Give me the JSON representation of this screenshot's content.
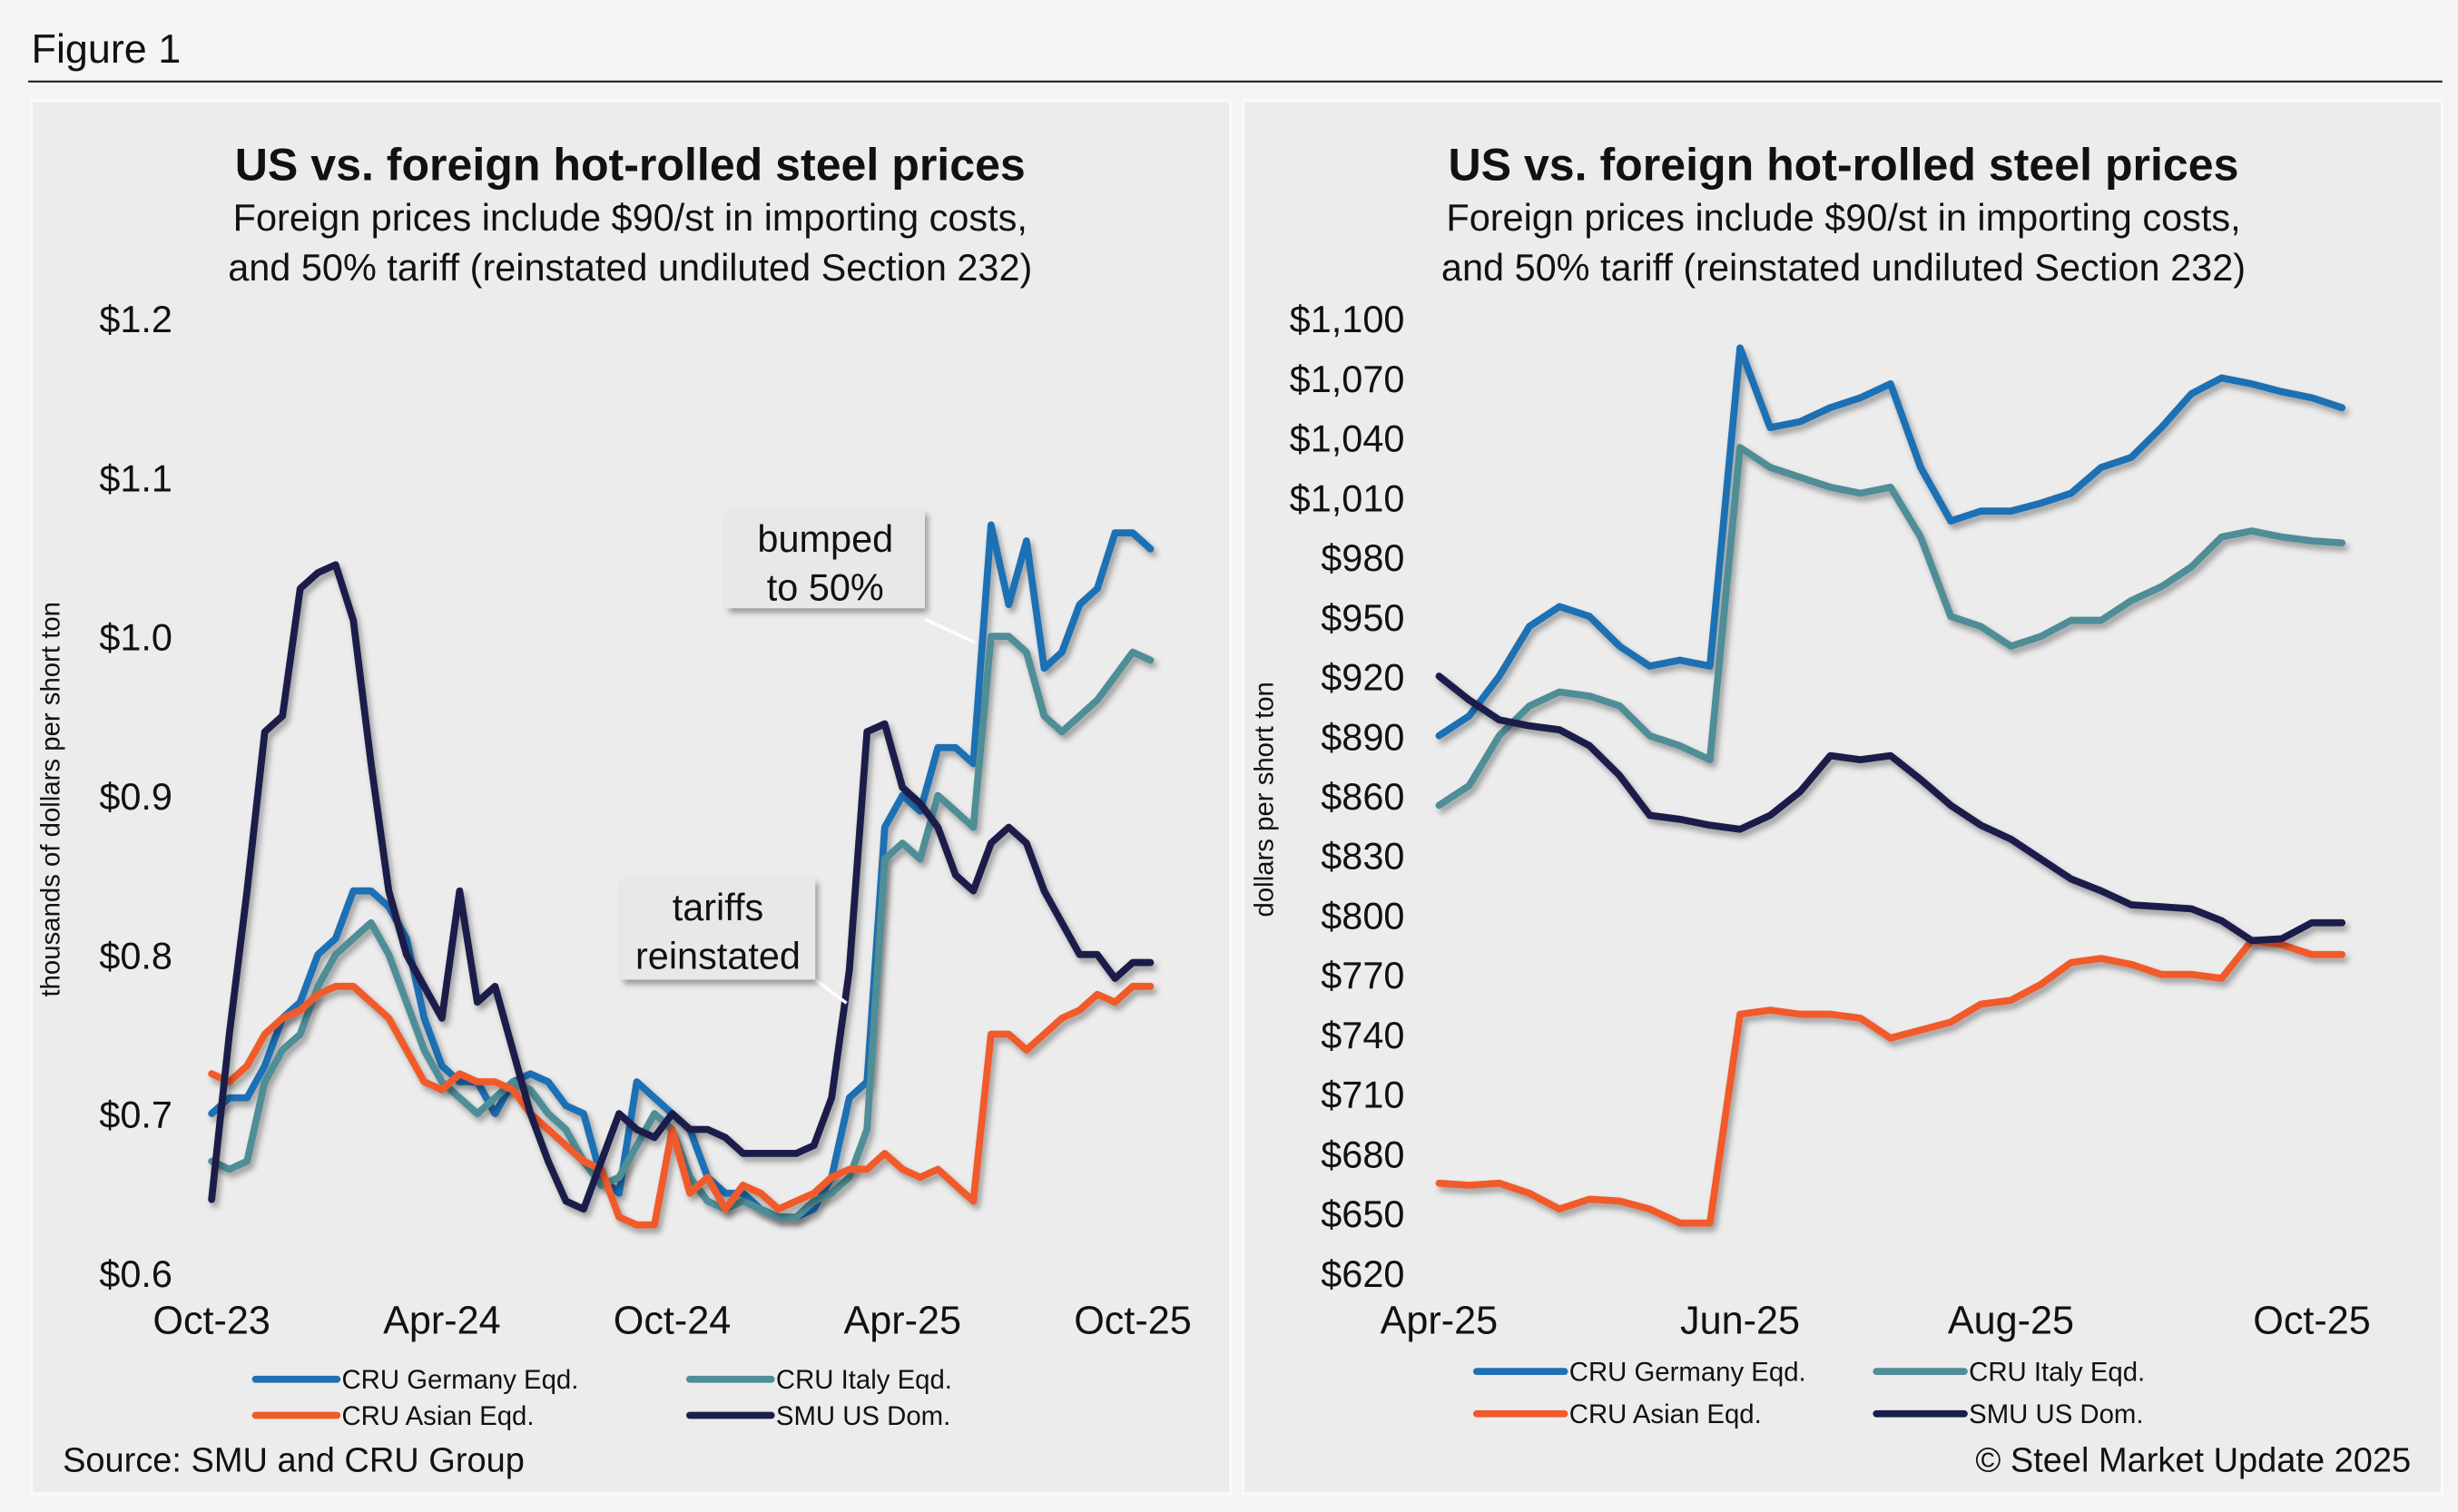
{
  "figure_title": "Figure 1",
  "source": "Source: SMU and CRU Group",
  "copyright": "© Steel Market Update 2025",
  "chart_data": [
    {
      "type": "line",
      "title": "US vs. foreign hot-rolled steel prices",
      "subtitle": [
        "Foreign prices include $90/st in importing costs,",
        "and 50% tariff (reinstated undiluted Section 232)"
      ],
      "y_label": "thousands of dollars per short ton",
      "categories": [
        "Oct-23",
        null,
        null,
        null,
        null,
        null,
        null,
        null,
        null,
        null,
        null,
        null,
        null,
        "Apr-24",
        null,
        null,
        null,
        null,
        null,
        null,
        null,
        null,
        null,
        null,
        null,
        null,
        "Oct-24",
        null,
        null,
        null,
        null,
        null,
        null,
        null,
        null,
        null,
        null,
        null,
        null,
        "Apr-25",
        null,
        null,
        null,
        null,
        null,
        null,
        null,
        null,
        null,
        null,
        null,
        null,
        "Oct-25",
        null
      ],
      "ylim": [
        0.6,
        1.2
      ],
      "yticks": [
        {
          "value": 0.6,
          "label": "$0.6"
        },
        {
          "value": 0.7,
          "label": "$0.7"
        },
        {
          "value": 0.8,
          "label": "$0.8"
        },
        {
          "value": 0.9,
          "label": "$0.9"
        },
        {
          "value": 1.0,
          "label": "$1.0"
        },
        {
          "value": 1.1,
          "label": "$1.1"
        },
        {
          "value": 1.2,
          "label": "$1.2"
        }
      ],
      "annotations": [
        [
          "bumped",
          "to 50%"
        ],
        [
          "tariffs",
          "reinstated"
        ]
      ],
      "series": [
        {
          "name": "CRU Germany Eqd.",
          "color": "#1f70b4",
          "values": [
            0.7,
            0.71,
            0.71,
            0.73,
            0.76,
            0.77,
            0.8,
            0.81,
            0.84,
            0.84,
            0.83,
            0.81,
            0.76,
            0.73,
            0.72,
            0.72,
            0.7,
            0.72,
            0.725,
            0.72,
            0.705,
            0.7,
            0.66,
            0.65,
            0.72,
            0.71,
            0.7,
            0.69,
            0.66,
            0.65,
            0.65,
            0.64,
            0.635,
            0.635,
            0.64,
            0.66,
            0.71,
            0.72,
            0.88,
            0.9,
            0.89,
            0.93,
            0.93,
            0.92,
            1.07,
            1.02,
            1.06,
            0.98,
            0.99,
            1.02,
            1.03,
            1.065,
            1.065,
            1.055
          ]
        },
        {
          "name": "CRU Italy Eqd.",
          "color": "#4f8d97",
          "values": [
            0.67,
            0.665,
            0.67,
            0.72,
            0.74,
            0.75,
            0.78,
            0.8,
            0.81,
            0.82,
            0.8,
            0.77,
            0.74,
            0.72,
            0.71,
            0.7,
            0.71,
            0.72,
            0.715,
            0.7,
            0.69,
            0.67,
            0.655,
            0.66,
            0.68,
            0.7,
            0.69,
            0.66,
            0.645,
            0.64,
            0.645,
            0.64,
            0.635,
            0.635,
            0.645,
            0.65,
            0.66,
            0.69,
            0.86,
            0.87,
            0.86,
            0.9,
            0.89,
            0.88,
            1.0,
            1.0,
            0.99,
            0.95,
            0.94,
            0.95,
            0.96,
            0.975,
            0.99,
            0.985
          ]
        },
        {
          "name": "CRU Asian Eqd.",
          "color": "#f15a29",
          "values": [
            0.725,
            0.72,
            0.73,
            0.75,
            0.76,
            0.765,
            0.775,
            0.78,
            0.78,
            0.77,
            0.76,
            0.74,
            0.72,
            0.715,
            0.725,
            0.72,
            0.72,
            0.715,
            0.7,
            0.69,
            0.68,
            0.67,
            0.665,
            0.635,
            0.63,
            0.63,
            0.69,
            0.65,
            0.66,
            0.64,
            0.655,
            0.65,
            0.64,
            0.645,
            0.65,
            0.66,
            0.665,
            0.665,
            0.675,
            0.665,
            0.66,
            0.665,
            0.655,
            0.645,
            0.75,
            0.75,
            0.74,
            0.75,
            0.76,
            0.765,
            0.775,
            0.77,
            0.78,
            0.78
          ]
        },
        {
          "name": "SMU US Dom.",
          "color": "#1b1f4b",
          "values": [
            0.646,
            0.75,
            0.84,
            0.94,
            0.95,
            1.03,
            1.04,
            1.045,
            1.01,
            0.92,
            0.84,
            0.8,
            0.78,
            0.76,
            0.84,
            0.77,
            0.78,
            0.74,
            0.7,
            0.67,
            0.645,
            0.64,
            0.67,
            0.7,
            0.69,
            0.685,
            0.7,
            0.69,
            0.69,
            0.685,
            0.675,
            0.675,
            0.675,
            0.675,
            0.68,
            0.71,
            0.79,
            0.94,
            0.945,
            0.905,
            0.895,
            0.88,
            0.85,
            0.84,
            0.87,
            0.88,
            0.87,
            0.84,
            0.82,
            0.8,
            0.8,
            0.785,
            0.795,
            0.795
          ]
        }
      ]
    },
    {
      "type": "line",
      "title": "US vs. foreign hot-rolled steel prices",
      "subtitle": [
        "Foreign prices include $90/st in importing costs,",
        "and 50% tariff (reinstated undiluted Section 232)"
      ],
      "y_label": "dollars per short ton",
      "categories": [
        "Apr-25",
        null,
        null,
        null,
        null,
        null,
        null,
        null,
        null,
        null,
        "Jun-25",
        null,
        null,
        null,
        null,
        null,
        null,
        null,
        null,
        "Aug-25",
        null,
        null,
        null,
        null,
        null,
        null,
        null,
        null,
        null,
        "Oct-25",
        null
      ],
      "ylim": [
        620,
        1100
      ],
      "yticks": [
        {
          "value": 620,
          "label": "$620"
        },
        {
          "value": 650,
          "label": "$650"
        },
        {
          "value": 680,
          "label": "$680"
        },
        {
          "value": 710,
          "label": "$710"
        },
        {
          "value": 740,
          "label": "$740"
        },
        {
          "value": 770,
          "label": "$770"
        },
        {
          "value": 800,
          "label": "$800"
        },
        {
          "value": 830,
          "label": "$830"
        },
        {
          "value": 860,
          "label": "$860"
        },
        {
          "value": 890,
          "label": "$890"
        },
        {
          "value": 920,
          "label": "$920"
        },
        {
          "value": 950,
          "label": "$950"
        },
        {
          "value": 980,
          "label": "$980"
        },
        {
          "value": 1010,
          "label": "$1,010"
        },
        {
          "value": 1040,
          "label": "$1,040"
        },
        {
          "value": 1070,
          "label": "$1,070"
        },
        {
          "value": 1100,
          "label": "$1,100"
        }
      ],
      "series": [
        {
          "name": "CRU Germany Eqd.",
          "color": "#1f70b4",
          "values": [
            890,
            900,
            920,
            945,
            955,
            950,
            935,
            925,
            928,
            925,
            1085,
            1045,
            1048,
            1055,
            1060,
            1067,
            1025,
            998,
            1003,
            1003,
            1007,
            1012,
            1025,
            1030,
            1045,
            1062,
            1070,
            1067,
            1063,
            1060,
            1055
          ]
        },
        {
          "name": "CRU Italy Eqd.",
          "color": "#4f8d97",
          "values": [
            855,
            865,
            890,
            905,
            912,
            910,
            905,
            890,
            885,
            878,
            1035,
            1025,
            1020,
            1015,
            1012,
            1015,
            990,
            950,
            945,
            935,
            940,
            948,
            948,
            958,
            965,
            975,
            990,
            993,
            990,
            988,
            987
          ]
        },
        {
          "name": "CRU Asian Eqd.",
          "color": "#f15a29",
          "values": [
            665,
            664,
            665,
            660,
            652,
            657,
            656,
            652,
            645,
            645,
            750,
            752,
            750,
            750,
            748,
            738,
            742,
            746,
            755,
            757,
            765,
            776,
            778,
            775,
            770,
            770,
            768,
            787,
            785,
            780,
            780
          ]
        },
        {
          "name": "SMU US Dom.",
          "color": "#1b1f4b",
          "values": [
            920,
            908,
            898,
            895,
            893,
            885,
            870,
            850,
            848,
            845,
            843,
            850,
            862,
            880,
            878,
            880,
            868,
            855,
            845,
            838,
            828,
            818,
            812,
            805,
            804,
            803,
            797,
            787,
            788,
            796,
            796
          ]
        }
      ]
    }
  ]
}
